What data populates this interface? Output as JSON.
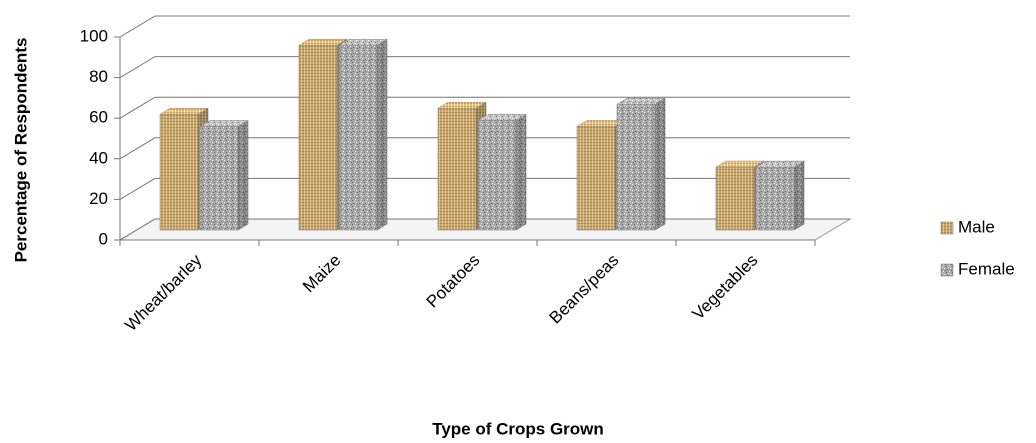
{
  "chart_data": {
    "type": "bar3d",
    "x_label": "Type of Crops Grown",
    "y_label": "Percentage of Respondents",
    "categories": [
      "Wheat/barley",
      "Maize",
      "Potatoes",
      "Beans/peas",
      "Vegetables"
    ],
    "series": [
      {
        "name": "Male",
        "color": "#c9a66b",
        "values": [
          57,
          91,
          60,
          51,
          31
        ]
      },
      {
        "name": "Female",
        "color": "#a9a9a9",
        "values": [
          51,
          91,
          54,
          62,
          31
        ]
      }
    ],
    "ylim": [
      0,
      100
    ],
    "yticks": [
      0,
      20,
      40,
      60,
      80,
      100
    ],
    "grid": true,
    "legend": "right"
  }
}
